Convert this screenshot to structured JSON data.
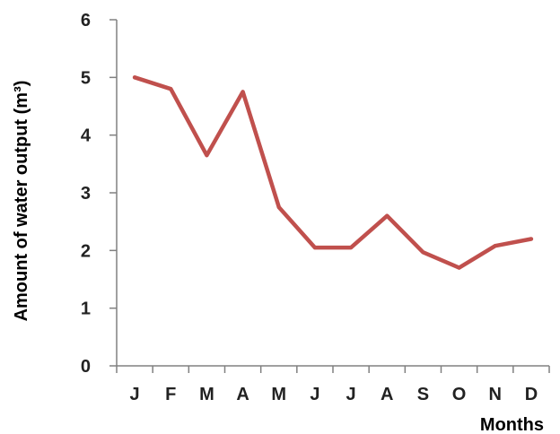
{
  "chart_data": {
    "type": "line",
    "categories": [
      "J",
      "F",
      "M",
      "A",
      "M",
      "J",
      "J",
      "A",
      "S",
      "O",
      "N",
      "D"
    ],
    "series": [
      {
        "values": [
          5.0,
          4.8,
          3.65,
          4.75,
          2.75,
          2.05,
          2.05,
          2.6,
          1.97,
          1.7,
          2.08,
          2.2
        ],
        "color": "#c0504d"
      }
    ],
    "xlabel": "Months",
    "ylabel": "Amount of water output (m³)",
    "ylim": [
      0,
      6
    ],
    "yticks": [
      "0",
      "1",
      "2",
      "3",
      "4",
      "5",
      "6"
    ],
    "grid": false,
    "axis_color": "#808080",
    "text_color": "#222222"
  }
}
